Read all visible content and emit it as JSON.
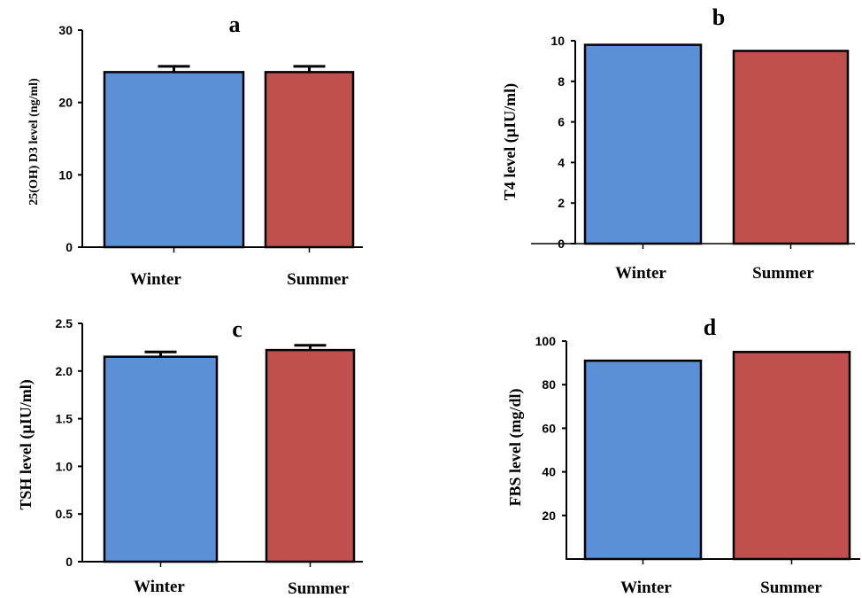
{
  "colors": {
    "winter": "#5b8fd6",
    "summer": "#c0504d"
  },
  "chart_data": [
    {
      "panel": "a",
      "type": "bar",
      "categories": [
        "Winter",
        "Summer"
      ],
      "values": [
        24.2,
        24.2
      ],
      "errors": [
        0.8,
        0.8
      ],
      "ylabel": "25(OH) D3 level (ng/ml)",
      "ylim": [
        0,
        30
      ],
      "yticks": [
        0,
        10,
        20,
        30
      ],
      "ytick_labels": [
        "0",
        "10",
        "20",
        "30"
      ],
      "grid": false
    },
    {
      "panel": "b",
      "type": "bar",
      "categories": [
        "Winter",
        "Summer"
      ],
      "values": [
        9.8,
        9.5
      ],
      "errors": [
        0,
        0
      ],
      "ylabel": "T4 level (µIU/ml)",
      "ylim": [
        0,
        10
      ],
      "yticks": [
        0,
        2,
        4,
        6,
        8,
        10
      ],
      "ytick_labels": [
        "0",
        "2",
        "4",
        "6",
        "8",
        "10"
      ],
      "grid": false
    },
    {
      "panel": "c",
      "type": "bar",
      "categories": [
        "Winter",
        "Summer"
      ],
      "values": [
        2.15,
        2.22
      ],
      "errors": [
        0.05,
        0.05
      ],
      "ylabel": "TSH level (µIU/ml)",
      "ylim": [
        0,
        2.5
      ],
      "yticks": [
        0,
        0.5,
        1.0,
        1.5,
        2.0,
        2.5
      ],
      "ytick_labels": [
        "0",
        "0.5",
        "1.0",
        "1.5",
        "2.0",
        "2.5"
      ],
      "grid": false
    },
    {
      "panel": "d",
      "type": "bar",
      "categories": [
        "Winter",
        "Summer"
      ],
      "values": [
        91,
        95
      ],
      "errors": [
        0,
        0
      ],
      "ylabel": "FBS level (mg/dl)",
      "ylim": [
        0,
        100
      ],
      "yticks": [
        20,
        40,
        60,
        80,
        100
      ],
      "ytick_labels": [
        "20",
        "40",
        "60",
        "80",
        "100"
      ],
      "grid": false
    }
  ]
}
